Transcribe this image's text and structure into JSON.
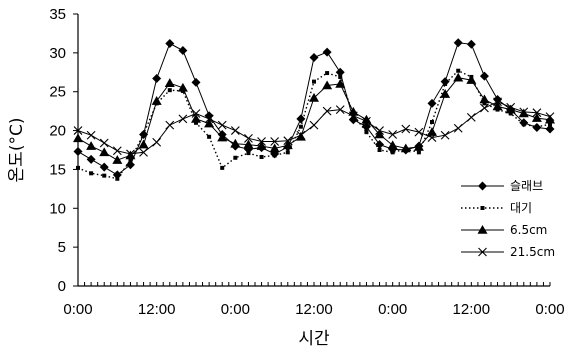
{
  "chart_data": {
    "type": "line",
    "xlabel": "시간",
    "ylabel": "온도(°C)",
    "ylim": [
      0,
      35
    ],
    "yticks": [
      0,
      5,
      10,
      15,
      20,
      25,
      30,
      35
    ],
    "xlim": [
      0,
      72
    ],
    "xtick_positions": [
      0,
      12,
      24,
      36,
      48,
      60,
      72
    ],
    "xtick_labels": [
      "0:00",
      "12:00",
      "0:00",
      "12:00",
      "0:00",
      "12:00",
      "0:00"
    ],
    "grid": false,
    "legend_position": "right",
    "series": [
      {
        "name": "슬래브",
        "marker": "diamond",
        "dash": "solid",
        "x": [
          0,
          2,
          4,
          6,
          8,
          10,
          12,
          14,
          16,
          18,
          20,
          22,
          24,
          26,
          28,
          30,
          32,
          34,
          36,
          38,
          40,
          42,
          44,
          46,
          48,
          50,
          52,
          54,
          56,
          58,
          60,
          62,
          64,
          66,
          68,
          70,
          72
        ],
        "y": [
          17.3,
          16.3,
          15.3,
          14.3,
          15.6,
          19.5,
          26.7,
          31.2,
          30.3,
          26.2,
          21.9,
          19.5,
          18.0,
          17.6,
          17.8,
          17.0,
          17.9,
          21.5,
          29.4,
          30.1,
          27.5,
          21.4,
          20.5,
          18.2,
          17.6,
          17.5,
          18.0,
          23.5,
          26.3,
          31.3,
          31.1,
          27.0,
          24.0,
          22.7,
          21.0,
          20.4,
          20.2
        ]
      },
      {
        "name": "대기",
        "marker": "square",
        "dash": "dotted",
        "x": [
          0,
          2,
          4,
          6,
          8,
          10,
          12,
          14,
          16,
          18,
          20,
          22,
          24,
          26,
          28,
          30,
          32,
          34,
          36,
          38,
          40,
          42,
          44,
          46,
          48,
          50,
          52,
          54,
          56,
          58,
          60,
          62,
          64,
          66,
          68,
          70,
          72
        ],
        "y": [
          15.2,
          14.5,
          14.2,
          13.8,
          16.2,
          19.6,
          23.5,
          25.2,
          25.1,
          21.0,
          19.2,
          15.2,
          16.5,
          17.1,
          16.6,
          16.8,
          17.2,
          20.5,
          26.3,
          27.4,
          26.9,
          22.0,
          19.8,
          17.5,
          17.2,
          17.6,
          17.2,
          21.1,
          26.0,
          27.7,
          26.9,
          23.5,
          22.7,
          22.2,
          20.8,
          20.5,
          20.8
        ]
      },
      {
        "name": "6.5cm",
        "marker": "triangle",
        "dash": "solid",
        "x": [
          0,
          2,
          4,
          6,
          8,
          10,
          12,
          14,
          16,
          18,
          20,
          22,
          24,
          26,
          28,
          30,
          32,
          34,
          36,
          38,
          40,
          42,
          44,
          46,
          48,
          50,
          52,
          54,
          56,
          58,
          60,
          62,
          64,
          66,
          68,
          70,
          72
        ],
        "y": [
          19.0,
          18.0,
          17.2,
          16.2,
          16.8,
          18.2,
          23.8,
          26.1,
          25.5,
          21.5,
          20.9,
          19.1,
          18.3,
          18.2,
          18.0,
          17.7,
          18.1,
          19.2,
          24.2,
          25.8,
          26.0,
          22.4,
          21.4,
          19.5,
          18.1,
          17.7,
          17.9,
          19.8,
          24.7,
          26.8,
          26.5,
          24.0,
          23.1,
          22.7,
          22.2,
          21.6,
          21.4
        ]
      },
      {
        "name": "21.5cm",
        "marker": "cross",
        "dash": "solid",
        "x": [
          0,
          2,
          4,
          6,
          8,
          10,
          12,
          14,
          16,
          18,
          20,
          22,
          24,
          26,
          28,
          30,
          32,
          34,
          36,
          38,
          40,
          42,
          44,
          46,
          48,
          50,
          52,
          54,
          56,
          58,
          60,
          62,
          64,
          66,
          68,
          70,
          72
        ],
        "y": [
          20.0,
          19.4,
          18.4,
          17.4,
          17.0,
          17.2,
          18.5,
          20.7,
          21.5,
          22.2,
          21.5,
          20.7,
          20.0,
          19.0,
          18.6,
          18.6,
          18.7,
          19.4,
          20.7,
          22.5,
          22.7,
          21.9,
          21.2,
          20.0,
          19.5,
          20.2,
          19.8,
          19.1,
          19.4,
          20.3,
          21.7,
          22.9,
          23.7,
          23.0,
          22.4,
          22.3,
          21.8
        ]
      }
    ]
  }
}
